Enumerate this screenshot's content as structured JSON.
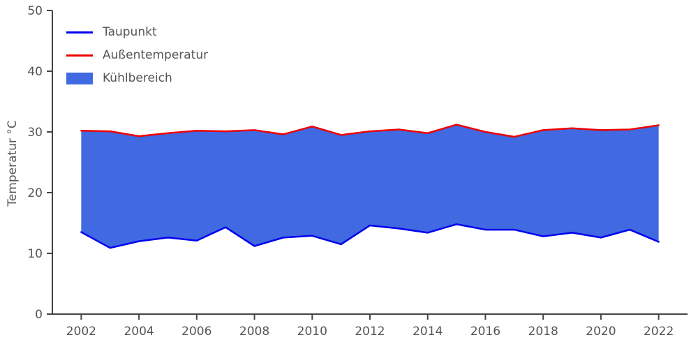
{
  "chart_data": {
    "type": "area",
    "title": "",
    "xlabel": "",
    "ylabel": "Temperatur °C",
    "x": [
      2002,
      2003,
      2004,
      2005,
      2006,
      2007,
      2008,
      2009,
      2010,
      2011,
      2012,
      2013,
      2014,
      2015,
      2016,
      2017,
      2018,
      2019,
      2020,
      2021,
      2022
    ],
    "series": [
      {
        "name": "Taupunkt",
        "color": "#0000ee",
        "values": [
          13.5,
          10.9,
          12.0,
          12.6,
          12.1,
          14.3,
          11.2,
          12.6,
          12.9,
          11.5,
          14.6,
          14.1,
          13.4,
          14.8,
          13.9,
          13.9,
          12.8,
          13.4,
          12.6,
          13.9,
          11.9
        ]
      },
      {
        "name": "Außentemperatur",
        "color": "#ee0000",
        "values": [
          30.2,
          30.1,
          29.3,
          29.8,
          30.2,
          30.1,
          30.3,
          29.6,
          30.9,
          29.5,
          30.1,
          30.4,
          29.8,
          31.2,
          30.0,
          29.2,
          30.3,
          30.6,
          30.3,
          30.4,
          31.1
        ]
      }
    ],
    "fill": {
      "label": "Kühlbereich",
      "color": "#4169e1",
      "between": [
        "Taupunkt",
        "Außentemperatur"
      ]
    },
    "xticks": [
      2002,
      2004,
      2006,
      2008,
      2010,
      2012,
      2014,
      2016,
      2018,
      2020,
      2022
    ],
    "yticks": [
      0,
      10,
      20,
      30,
      40,
      50
    ],
    "xlim": [
      2001,
      2023
    ],
    "ylim": [
      0,
      50
    ],
    "grid": false,
    "legend_position": "upper left",
    "text_color": "#555555",
    "spine_color": "#444444"
  }
}
